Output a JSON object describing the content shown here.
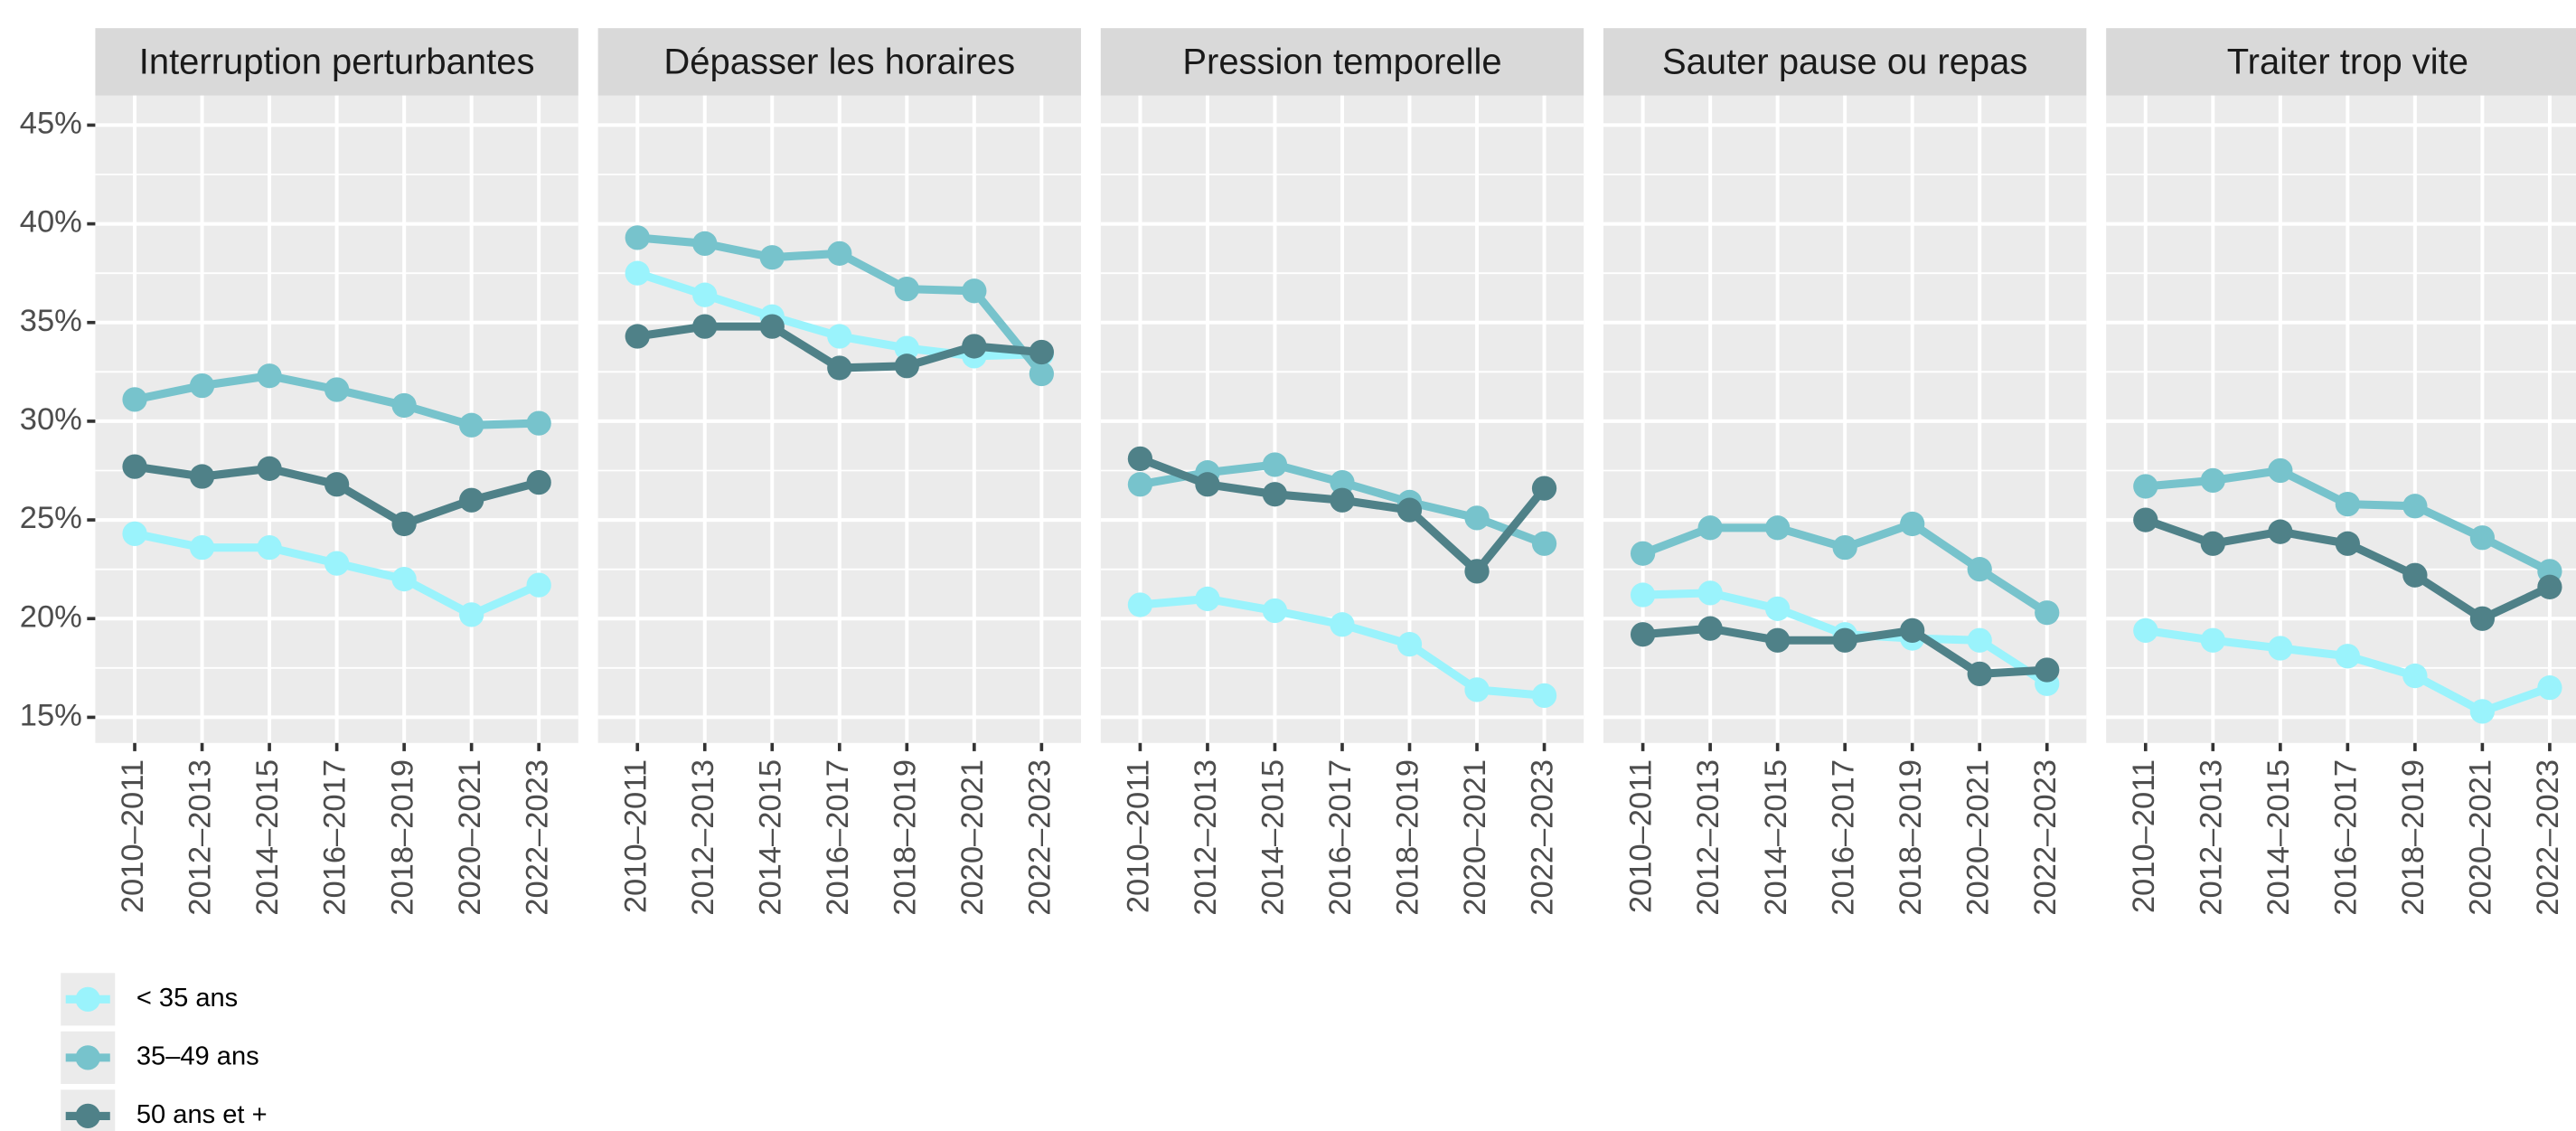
{
  "chart_data": [
    {
      "type": "line",
      "title": "Interruption perturbantes",
      "categories": [
        "2010–2011",
        "2012–2013",
        "2014–2015",
        "2016–2017",
        "2018–2019",
        "2020–2021",
        "2022–2023"
      ],
      "series": [
        {
          "name": "< 35 ans",
          "color": "#9af3fc",
          "values": [
            24.3,
            23.6,
            23.6,
            22.8,
            22.0,
            20.2,
            21.7
          ]
        },
        {
          "name": "35–49 ans",
          "color": "#77c3cc",
          "values": [
            31.1,
            31.8,
            32.3,
            31.6,
            30.8,
            29.8,
            29.9
          ]
        },
        {
          "name": "50 ans et +",
          "color": "#4f8188",
          "values": [
            27.7,
            27.2,
            27.6,
            26.8,
            24.8,
            26.0,
            26.9
          ]
        }
      ],
      "ylim": [
        13.7,
        46.5
      ],
      "yticks": [
        {
          "value": 15,
          "label": "15%"
        },
        {
          "value": 20,
          "label": "20%"
        },
        {
          "value": 25,
          "label": "25%"
        },
        {
          "value": 30,
          "label": "30%"
        },
        {
          "value": 35,
          "label": "35%"
        },
        {
          "value": 40,
          "label": "40%"
        },
        {
          "value": 45,
          "label": "45%"
        }
      ],
      "grid": true
    },
    {
      "type": "line",
      "title": "Dépasser les horaires",
      "categories": [
        "2010–2011",
        "2012–2013",
        "2014–2015",
        "2016–2017",
        "2018–2019",
        "2020–2021",
        "2022–2023"
      ],
      "series": [
        {
          "name": "< 35 ans",
          "color": "#9af3fc",
          "values": [
            37.5,
            36.4,
            35.3,
            34.3,
            33.7,
            33.3,
            33.4
          ]
        },
        {
          "name": "35–49 ans",
          "color": "#77c3cc",
          "values": [
            39.3,
            39.0,
            38.3,
            38.5,
            36.7,
            36.6,
            32.4
          ]
        },
        {
          "name": "50 ans et +",
          "color": "#4f8188",
          "values": [
            34.3,
            34.8,
            34.8,
            32.7,
            32.8,
            33.8,
            33.5
          ]
        }
      ],
      "ylim": [
        13.7,
        46.5
      ],
      "yticks": [
        15,
        20,
        25,
        30,
        35,
        40,
        45
      ],
      "grid": true
    },
    {
      "type": "line",
      "title": "Pression temporelle",
      "categories": [
        "2010–2011",
        "2012–2013",
        "2014–2015",
        "2016–2017",
        "2018–2019",
        "2020–2021",
        "2022–2023"
      ],
      "series": [
        {
          "name": "< 35 ans",
          "color": "#9af3fc",
          "values": [
            20.7,
            21.0,
            20.4,
            19.7,
            18.7,
            16.4,
            16.1
          ]
        },
        {
          "name": "35–49 ans",
          "color": "#77c3cc",
          "values": [
            26.8,
            27.4,
            27.8,
            26.9,
            25.9,
            25.1,
            23.8
          ]
        },
        {
          "name": "50 ans et +",
          "color": "#4f8188",
          "values": [
            28.1,
            26.8,
            26.3,
            26.0,
            25.5,
            22.4,
            26.6
          ]
        }
      ],
      "ylim": [
        13.7,
        46.5
      ],
      "yticks": [
        15,
        20,
        25,
        30,
        35,
        40,
        45
      ],
      "grid": true
    },
    {
      "type": "line",
      "title": "Sauter pause ou repas",
      "categories": [
        "2010–2011",
        "2012–2013",
        "2014–2015",
        "2016–2017",
        "2018–2019",
        "2020–2021",
        "2022–2023"
      ],
      "series": [
        {
          "name": "< 35 ans",
          "color": "#9af3fc",
          "values": [
            21.2,
            21.3,
            20.5,
            19.2,
            19.0,
            18.9,
            16.7
          ]
        },
        {
          "name": "35–49 ans",
          "color": "#77c3cc",
          "values": [
            23.3,
            24.6,
            24.6,
            23.6,
            24.8,
            22.5,
            20.3
          ]
        },
        {
          "name": "50 ans et +",
          "color": "#4f8188",
          "values": [
            19.2,
            19.5,
            18.9,
            18.9,
            19.4,
            17.2,
            17.4
          ]
        }
      ],
      "ylim": [
        13.7,
        46.5
      ],
      "yticks": [
        15,
        20,
        25,
        30,
        35,
        40,
        45
      ],
      "grid": true
    },
    {
      "type": "line",
      "title": "Traiter trop vite",
      "categories": [
        "2010–2011",
        "2012–2013",
        "2014–2015",
        "2016–2017",
        "2018–2019",
        "2020–2021",
        "2022–2023"
      ],
      "series": [
        {
          "name": "< 35 ans",
          "color": "#9af3fc",
          "values": [
            19.4,
            18.9,
            18.5,
            18.1,
            17.1,
            15.3,
            16.5
          ]
        },
        {
          "name": "35–49 ans",
          "color": "#77c3cc",
          "values": [
            26.7,
            27.0,
            27.5,
            25.8,
            25.7,
            24.1,
            22.4
          ]
        },
        {
          "name": "50 ans et +",
          "color": "#4f8188",
          "values": [
            25.0,
            23.8,
            24.4,
            23.8,
            22.2,
            20.0,
            21.6
          ]
        }
      ],
      "ylim": [
        13.7,
        46.5
      ],
      "yticks": [
        15,
        20,
        25,
        30,
        35,
        40,
        45
      ],
      "grid": true
    }
  ]
}
